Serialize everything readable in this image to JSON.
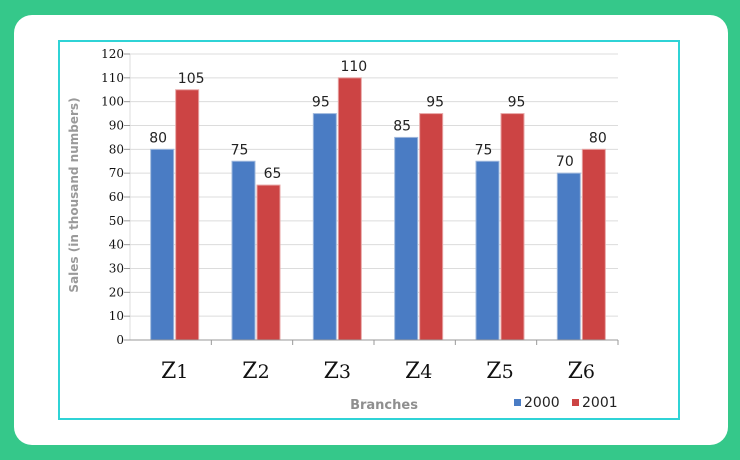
{
  "chart_data": {
    "type": "bar",
    "title": "",
    "xlabel": "Branches",
    "ylabel": "Sales (in thousand numbers)",
    "categories": [
      "Z1",
      "Z2",
      "Z3",
      "Z4",
      "Z5",
      "Z6"
    ],
    "series": [
      {
        "name": "2000",
        "color": "#4a7cc4",
        "values": [
          80,
          75,
          95,
          85,
          75,
          70
        ]
      },
      {
        "name": "2001",
        "color": "#cc4444",
        "values": [
          105,
          65,
          110,
          95,
          95,
          80
        ]
      }
    ],
    "ylim": [
      0,
      120
    ],
    "yticks": [
      0,
      10,
      20,
      30,
      40,
      50,
      60,
      70,
      80,
      90,
      100,
      110,
      120
    ],
    "grid": true,
    "legend_position": "bottom-right"
  },
  "labels": {
    "ylabel": "Sales (in thousand numbers)",
    "xlabel": "Branches",
    "legend": [
      "2000",
      "2001"
    ]
  },
  "colors": {
    "background": "#35c88a",
    "frame_border": "#2fd3d6",
    "series_2000": "#4a7cc4",
    "series_2001": "#cc4444"
  }
}
